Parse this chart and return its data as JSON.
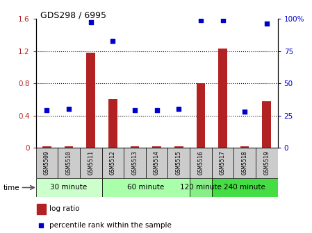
{
  "title": "GDS298 / 6995",
  "samples": [
    "GSM5509",
    "GSM5510",
    "GSM5511",
    "GSM5512",
    "GSM5513",
    "GSM5514",
    "GSM5515",
    "GSM5516",
    "GSM5517",
    "GSM5518",
    "GSM5519"
  ],
  "log_ratio": [
    0.02,
    0.02,
    1.18,
    0.6,
    0.02,
    0.02,
    0.02,
    0.8,
    1.23,
    0.02,
    0.58
  ],
  "percentile_rank": [
    29,
    30,
    97,
    83,
    29,
    29,
    30,
    99,
    99,
    28,
    96
  ],
  "log_ratio_color": "#b22222",
  "percentile_color": "#0000cc",
  "ylim_left": [
    0,
    1.6
  ],
  "ylim_right": [
    0,
    100
  ],
  "yticks_left": [
    0,
    0.4,
    0.8,
    1.2,
    1.6
  ],
  "ytick_labels_left": [
    "0",
    "0.4",
    "0.8",
    "1.2",
    "1.6"
  ],
  "yticks_right": [
    0,
    25,
    50,
    75,
    100
  ],
  "ytick_labels_right": [
    "0",
    "25",
    "50",
    "75",
    "100%"
  ],
  "time_groups": [
    {
      "label": "30 minute",
      "indices": [
        0,
        1,
        2
      ],
      "color": "#ccffcc"
    },
    {
      "label": "60 minute",
      "indices": [
        3,
        4,
        5,
        6
      ],
      "color": "#aaffaa"
    },
    {
      "label": "120 minute",
      "indices": [
        7
      ],
      "color": "#88ee88"
    },
    {
      "label": "240 minute",
      "indices": [
        8,
        9,
        10
      ],
      "color": "#44dd44"
    }
  ],
  "time_label": "time",
  "legend_log_ratio": "log ratio",
  "legend_percentile": "percentile rank within the sample",
  "bar_width": 0.4,
  "background_color": "#ffffff",
  "sample_box_color": "#cccccc"
}
